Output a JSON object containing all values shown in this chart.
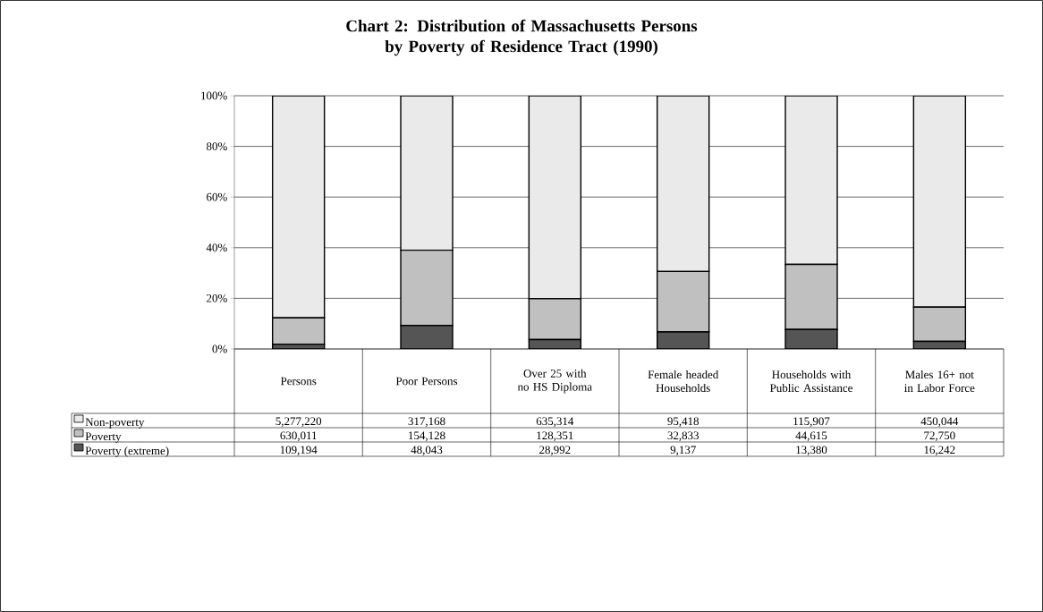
{
  "chart_data": {
    "type": "bar",
    "stacked": true,
    "title": "Chart 2: Distribution of Massachusetts Persons\nby Poverty of Residence Tract (1990)",
    "categories": [
      "Persons",
      "Poor Persons",
      "Over 25 with no HS Diploma",
      "Female headed Households",
      "Households with Public Assistance",
      "Males 16+ not in Labor Force"
    ],
    "series": [
      {
        "name": "Poverty (extreme)",
        "color": "#555555",
        "values": [
          1.8,
          9.3,
          3.7,
          6.7,
          7.7,
          3.0
        ]
      },
      {
        "name": "Poverty",
        "color": "#c0c0c0",
        "values": [
          10.5,
          29.7,
          16.2,
          23.9,
          25.7,
          13.5
        ]
      },
      {
        "name": "Non-poverty",
        "color": "#eaeaea",
        "values": [
          87.7,
          61.0,
          80.1,
          69.4,
          66.6,
          83.5
        ]
      }
    ],
    "annotations": [
      "5,277,220",
      "317,168",
      "635,314",
      "95,418",
      "115,907",
      "450,044",
      "630,011",
      "154,128",
      "128,351",
      "32,833",
      "44,615",
      "72,750",
      "109,194",
      "48,043",
      "28,992",
      "9,137",
      "13,380",
      "16,242"
    ],
    "ylim": [
      0,
      100
    ],
    "yticks": [
      {
        "value": 0,
        "label": "0%"
      },
      {
        "value": 20,
        "label": "20%"
      },
      {
        "value": 40,
        "label": "40%"
      },
      {
        "value": 60,
        "label": "60%"
      },
      {
        "value": 80,
        "label": "80%"
      },
      {
        "value": 100,
        "label": "100%"
      }
    ],
    "grid": "y",
    "legend": "bottom left"
  }
}
